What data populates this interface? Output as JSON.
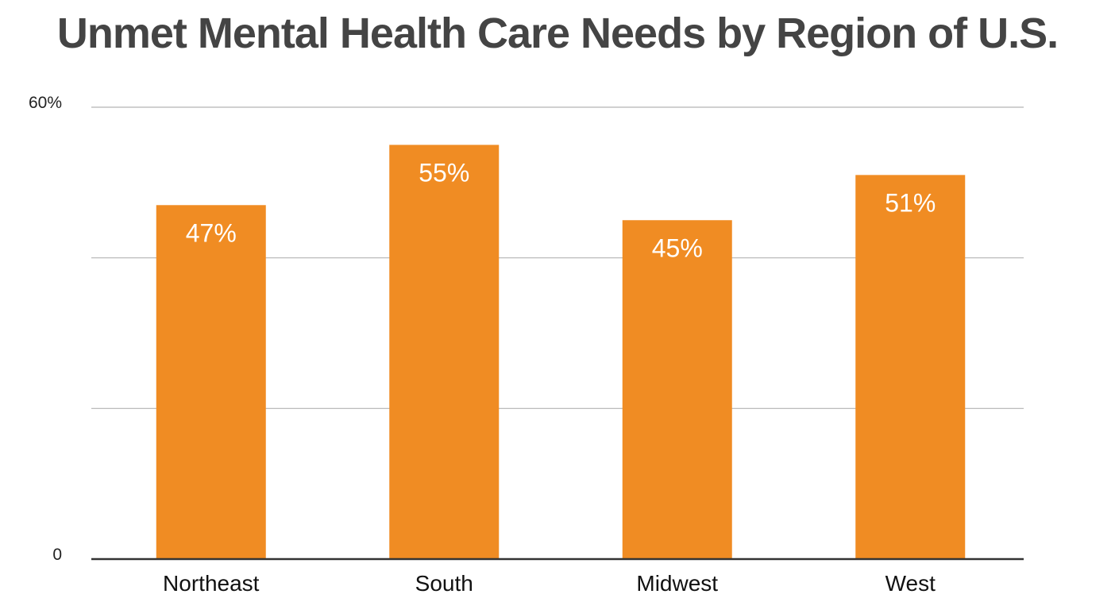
{
  "chart_data": {
    "type": "bar",
    "title": "Unmet Mental Health Care Needs by Region of U.S.",
    "xlabel": "",
    "ylabel": "",
    "categories": [
      "Northeast",
      "South",
      "Midwest",
      "West"
    ],
    "values": [
      47,
      55,
      45,
      51
    ],
    "data_labels": [
      "47%",
      "55%",
      "45%",
      "51%"
    ],
    "ylim": [
      0,
      60
    ],
    "y_gridlines": [
      0,
      20,
      40,
      60
    ],
    "y_tick_labels": [
      {
        "value": 0,
        "label": "0"
      },
      {
        "value": 60,
        "label": "60%"
      }
    ],
    "grid": true,
    "legend": "none",
    "colors": {
      "bar": "#F08C23",
      "grid": "#b3b3b3",
      "axis": "#333333",
      "title": "#444444",
      "data_label": "#ffffff"
    }
  }
}
